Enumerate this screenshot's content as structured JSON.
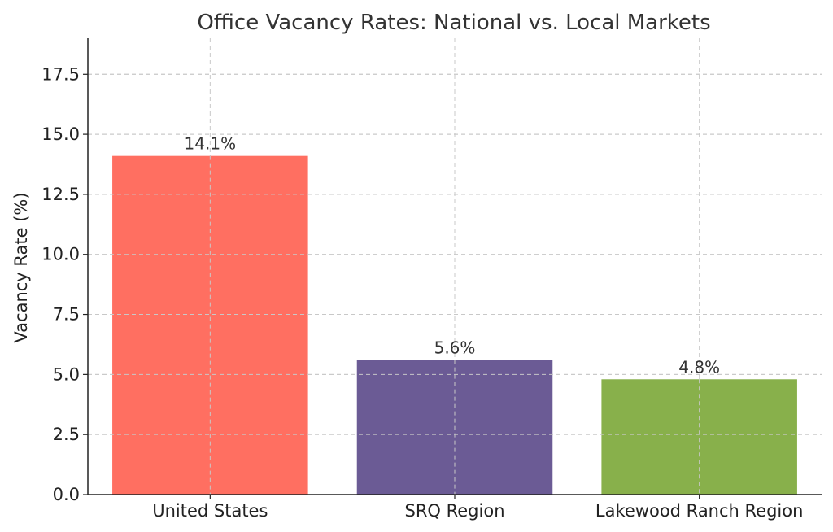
{
  "chart_data": {
    "type": "bar",
    "title": "Office Vacancy Rates: National vs. Local Markets",
    "xlabel": "",
    "ylabel": "Vacancy Rate (%)",
    "categories": [
      "United States",
      "SRQ Region",
      "Lakewood Ranch Region"
    ],
    "values": [
      14.1,
      5.6,
      4.8
    ],
    "data_labels": [
      "14.1%",
      "5.6%",
      "4.8%"
    ],
    "colors": [
      "#ff6f61",
      "#6b5b95",
      "#88b04b"
    ],
    "ylim": [
      0,
      19
    ],
    "yticks": [
      0.0,
      2.5,
      5.0,
      7.5,
      10.0,
      12.5,
      15.0,
      17.5
    ],
    "ytick_labels": [
      "0.0",
      "2.5",
      "5.0",
      "7.5",
      "10.0",
      "12.5",
      "15.0",
      "17.5"
    ],
    "grid": true,
    "legend": "none"
  }
}
